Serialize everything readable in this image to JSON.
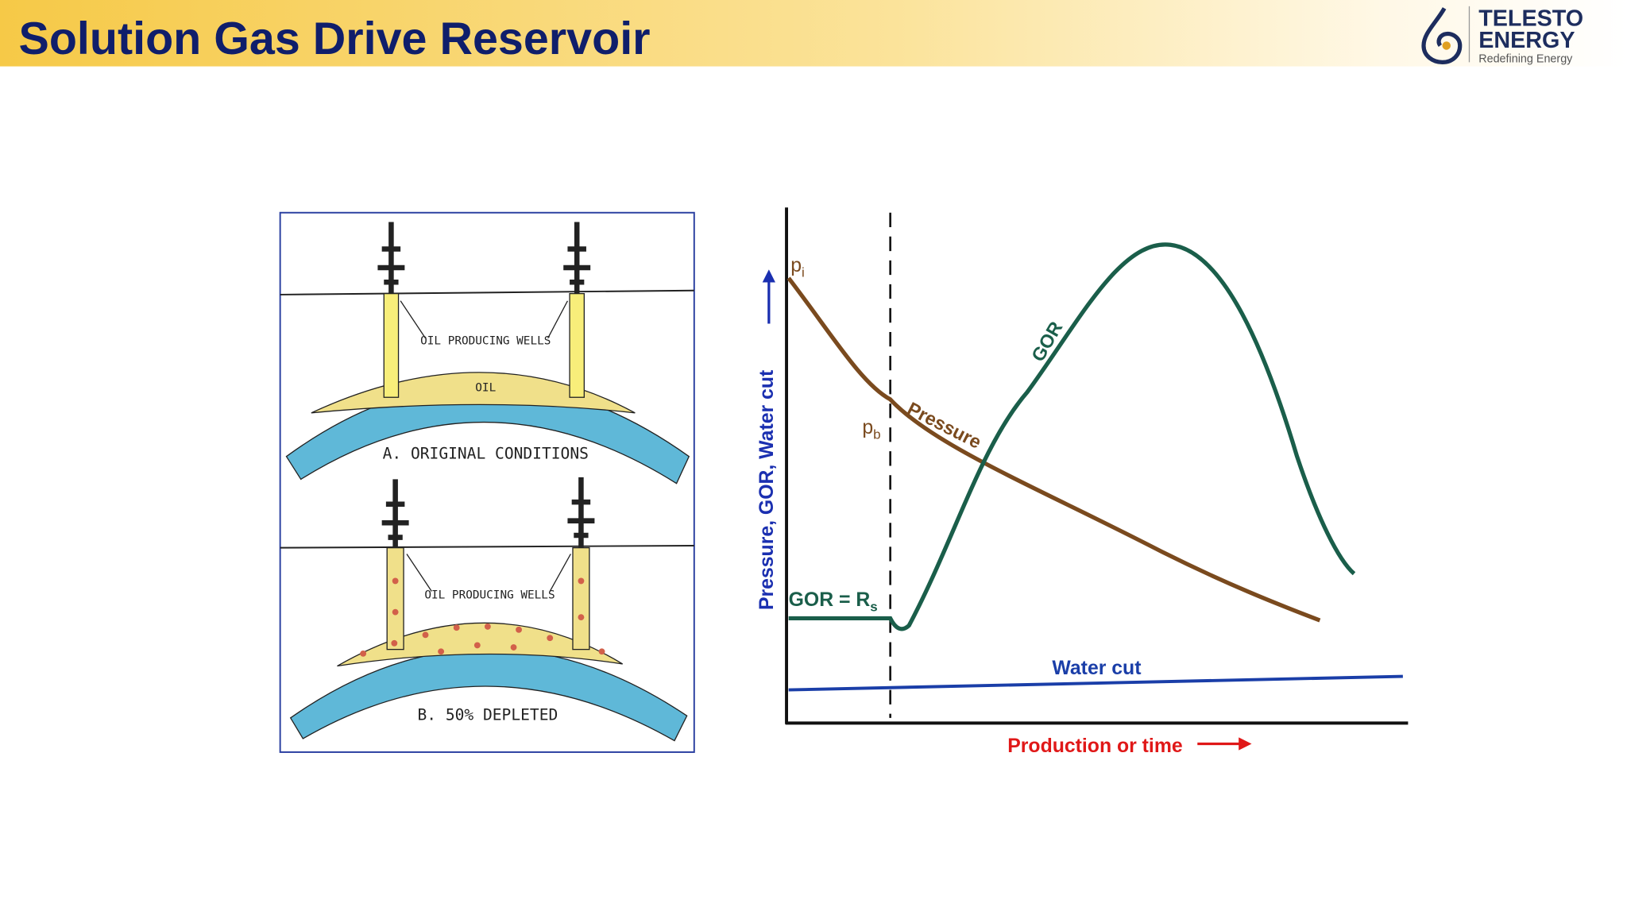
{
  "header": {
    "title": "Solution Gas Drive Reservoir",
    "logo": {
      "line1": "TELESTO",
      "line2": "ENERGY",
      "tagline": "Redefining Energy"
    }
  },
  "diagram": {
    "panel_a": {
      "wells_label": "OIL PRODUCING WELLS",
      "oil_label": "OIL",
      "caption": "A.  ORIGINAL  CONDITIONS"
    },
    "panel_b": {
      "wells_label": "OIL PRODUCING WELLS",
      "caption": "B.  50%  DEPLETED"
    }
  },
  "chart": {
    "y_axis_label": "Pressure, GOR, Water cut",
    "x_axis_label": "Production or time",
    "labels": {
      "pi": {
        "main": "p",
        "sub": "i"
      },
      "pb": {
        "main": "p",
        "sub": "b"
      },
      "pressure": "Pressure",
      "gor": "GOR",
      "gor_rs": {
        "main": "GOR = R",
        "sub": "s"
      },
      "water_cut": "Water cut"
    }
  }
}
